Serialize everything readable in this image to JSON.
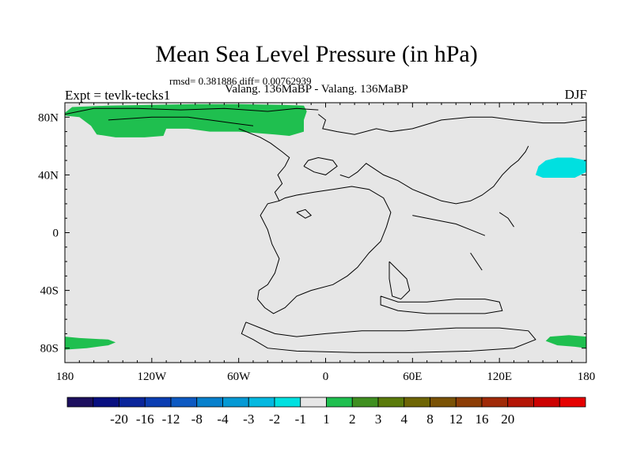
{
  "chart_data": {
    "type": "heatmap",
    "title": "Mean Sea Level Pressure (in hPa)",
    "stats_text": "rmsd= 0.381886 diff= 0.00762939",
    "subtitle": "Valang. 136MaBP - Valang. 136MaBP",
    "left_label": "Expt = tevlk-tecks1",
    "right_label": "DJF",
    "xlim": [
      -180,
      180
    ],
    "ylim": [
      -90,
      90
    ],
    "x_ticks": [
      {
        "value": -180,
        "label": "180"
      },
      {
        "value": -120,
        "label": "120W"
      },
      {
        "value": -60,
        "label": "60W"
      },
      {
        "value": 0,
        "label": "0"
      },
      {
        "value": 60,
        "label": "60E"
      },
      {
        "value": 120,
        "label": "120E"
      },
      {
        "value": 180,
        "label": "180"
      }
    ],
    "y_ticks": [
      {
        "value": 80,
        "label": "80N"
      },
      {
        "value": 40,
        "label": "40N"
      },
      {
        "value": 0,
        "label": "0"
      },
      {
        "value": -40,
        "label": "40S"
      },
      {
        "value": -80,
        "label": "80S"
      }
    ],
    "background_fill": "#e6e6e6",
    "regions": [
      {
        "name": "arctic-positive-anomaly",
        "level": "1 to 2",
        "color": "#1fbf4f",
        "points": [
          [
            -180,
            83
          ],
          [
            -175,
            87
          ],
          [
            -150,
            88
          ],
          [
            -120,
            88.5
          ],
          [
            -90,
            89
          ],
          [
            -60,
            89
          ],
          [
            -30,
            88.5
          ],
          [
            -15,
            88
          ],
          [
            -13,
            84
          ],
          [
            -15,
            78
          ],
          [
            -15,
            70
          ],
          [
            -25,
            67
          ],
          [
            -35,
            68
          ],
          [
            -60,
            70
          ],
          [
            -80,
            70
          ],
          [
            -95,
            72
          ],
          [
            -110,
            72
          ],
          [
            -112,
            67
          ],
          [
            -125,
            66
          ],
          [
            -145,
            66
          ],
          [
            -158,
            68
          ],
          [
            -162,
            74
          ],
          [
            -170,
            80
          ],
          [
            -180,
            81
          ]
        ]
      },
      {
        "name": "pacific-negative-anomaly",
        "level": "-2 to -1",
        "color": "#00e0e0",
        "points": [
          [
            145,
            40
          ],
          [
            147,
            46
          ],
          [
            152,
            50
          ],
          [
            160,
            52
          ],
          [
            170,
            52
          ],
          [
            180,
            50
          ],
          [
            180,
            42
          ],
          [
            172,
            38
          ],
          [
            160,
            38
          ],
          [
            150,
            38
          ]
        ]
      },
      {
        "name": "antarctic-positive-anomaly-west",
        "level": "1 to 2",
        "color": "#1fbf4f",
        "points": [
          [
            -180,
            -72
          ],
          [
            -170,
            -73
          ],
          [
            -150,
            -74
          ],
          [
            -145,
            -76
          ],
          [
            -150,
            -78
          ],
          [
            -165,
            -80
          ],
          [
            -180,
            -81
          ]
        ]
      },
      {
        "name": "antarctic-positive-anomaly-east",
        "level": "1 to 2",
        "color": "#1fbf4f",
        "points": [
          [
            180,
            -72
          ],
          [
            168,
            -71
          ],
          [
            155,
            -72
          ],
          [
            152,
            -75
          ],
          [
            160,
            -78
          ],
          [
            172,
            -79
          ],
          [
            180,
            -80
          ]
        ]
      }
    ],
    "coastlines": [
      [
        [
          -180,
          82
        ],
        [
          -160,
          86
        ],
        [
          -130,
          86
        ],
        [
          -100,
          85
        ],
        [
          -70,
          86
        ],
        [
          -40,
          84
        ],
        [
          -20,
          86
        ],
        [
          -5,
          85
        ]
      ],
      [
        [
          -150,
          78
        ],
        [
          -120,
          80
        ],
        [
          -95,
          80
        ],
        [
          -80,
          78
        ],
        [
          -65,
          76
        ],
        [
          -50,
          74
        ]
      ],
      [
        [
          -5,
          82
        ],
        [
          0,
          78
        ],
        [
          -2,
          72
        ],
        [
          8,
          70
        ],
        [
          20,
          68
        ],
        [
          35,
          72
        ],
        [
          45,
          70
        ],
        [
          60,
          72
        ],
        [
          80,
          78
        ],
        [
          100,
          80
        ],
        [
          115,
          80
        ],
        [
          130,
          78
        ],
        [
          150,
          76
        ],
        [
          165,
          76
        ],
        [
          180,
          78
        ]
      ],
      [
        [
          -60,
          72
        ],
        [
          -45,
          66
        ],
        [
          -38,
          62
        ],
        [
          -30,
          56
        ],
        [
          -25,
          52
        ],
        [
          -28,
          46
        ],
        [
          -33,
          40
        ],
        [
          -30,
          34
        ],
        [
          -35,
          28
        ],
        [
          -32,
          22
        ]
      ],
      [
        [
          -32,
          22
        ],
        [
          -40,
          20
        ],
        [
          -45,
          12
        ],
        [
          -40,
          2
        ],
        [
          -37,
          -8
        ],
        [
          -32,
          -18
        ],
        [
          -35,
          -28
        ],
        [
          -40,
          -36
        ],
        [
          -46,
          -40
        ],
        [
          -47,
          -46
        ],
        [
          -42,
          -52
        ],
        [
          -36,
          -56
        ],
        [
          -28,
          -52
        ],
        [
          -20,
          -44
        ],
        [
          -10,
          -40
        ],
        [
          5,
          -36
        ],
        [
          15,
          -30
        ],
        [
          22,
          -24
        ],
        [
          30,
          -14
        ],
        [
          38,
          -6
        ],
        [
          42,
          4
        ],
        [
          45,
          14
        ],
        [
          40,
          24
        ],
        [
          30,
          30
        ],
        [
          18,
          32
        ],
        [
          5,
          30
        ],
        [
          -8,
          28
        ],
        [
          -20,
          26
        ],
        [
          -28,
          24
        ],
        [
          -32,
          22
        ]
      ],
      [
        [
          -15,
          46
        ],
        [
          -8,
          42
        ],
        [
          0,
          40
        ],
        [
          8,
          46
        ],
        [
          5,
          50
        ],
        [
          -5,
          52
        ],
        [
          -12,
          50
        ],
        [
          -15,
          46
        ]
      ],
      [
        [
          10,
          40
        ],
        [
          16,
          38
        ],
        [
          22,
          42
        ],
        [
          28,
          48
        ],
        [
          34,
          44
        ],
        [
          40,
          40
        ],
        [
          50,
          36
        ],
        [
          60,
          30
        ],
        [
          70,
          26
        ],
        [
          80,
          22
        ],
        [
          90,
          20
        ],
        [
          100,
          22
        ],
        [
          108,
          26
        ],
        [
          116,
          32
        ],
        [
          122,
          40
        ],
        [
          128,
          46
        ],
        [
          133,
          50
        ],
        [
          138,
          56
        ],
        [
          140,
          60
        ]
      ],
      [
        [
          44,
          -20
        ],
        [
          50,
          -26
        ],
        [
          56,
          -32
        ],
        [
          58,
          -40
        ],
        [
          52,
          -46
        ],
        [
          46,
          -44
        ],
        [
          44,
          -32
        ],
        [
          44,
          -20
        ]
      ],
      [
        [
          38,
          -44
        ],
        [
          50,
          -48
        ],
        [
          70,
          -48
        ],
        [
          90,
          -46
        ],
        [
          110,
          -46
        ],
        [
          120,
          -48
        ],
        [
          122,
          -54
        ],
        [
          110,
          -56
        ],
        [
          90,
          -56
        ],
        [
          70,
          -56
        ],
        [
          50,
          -54
        ],
        [
          38,
          -50
        ],
        [
          38,
          -44
        ]
      ],
      [
        [
          -55,
          -62
        ],
        [
          -45,
          -66
        ],
        [
          -35,
          -70
        ],
        [
          -20,
          -72
        ],
        [
          0,
          -70
        ],
        [
          25,
          -68
        ],
        [
          55,
          -68
        ],
        [
          90,
          -66
        ],
        [
          120,
          -66
        ],
        [
          140,
          -68
        ],
        [
          145,
          -74
        ],
        [
          130,
          -80
        ],
        [
          100,
          -82
        ],
        [
          60,
          -83
        ],
        [
          20,
          -83
        ],
        [
          -20,
          -82
        ],
        [
          -40,
          -80
        ],
        [
          -50,
          -74
        ],
        [
          -58,
          -70
        ],
        [
          -55,
          -62
        ]
      ],
      [
        [
          -20,
          14
        ],
        [
          -14,
          10
        ],
        [
          -10,
          12
        ],
        [
          -14,
          16
        ],
        [
          -20,
          14
        ]
      ],
      [
        [
          60,
          12
        ],
        [
          70,
          10
        ],
        [
          80,
          8
        ],
        [
          90,
          6
        ],
        [
          100,
          2
        ],
        [
          110,
          -2
        ]
      ],
      [
        [
          120,
          14
        ],
        [
          126,
          10
        ],
        [
          130,
          4
        ]
      ],
      [
        [
          100,
          -14
        ],
        [
          104,
          -20
        ],
        [
          108,
          -26
        ]
      ]
    ]
  },
  "colorbar": {
    "colors": [
      "#1c0f5e",
      "#080f80",
      "#0a259a",
      "#0b3db2",
      "#0d59c2",
      "#0780cc",
      "#0599d4",
      "#04b8e0",
      "#00e0e0",
      "#e6e6e6",
      "#1fbf4f",
      "#3f8f20",
      "#5a7a0a",
      "#6e6504",
      "#7a5205",
      "#8c3d06",
      "#a02a08",
      "#b41506",
      "#cc0000",
      "#e50000"
    ],
    "labels": [
      "-20",
      "-16",
      "-12",
      "-8",
      "-4",
      "-3",
      "-2",
      "-1",
      "1",
      "2",
      "3",
      "4",
      "8",
      "12",
      "16",
      "20"
    ]
  },
  "line_color": "#000000"
}
